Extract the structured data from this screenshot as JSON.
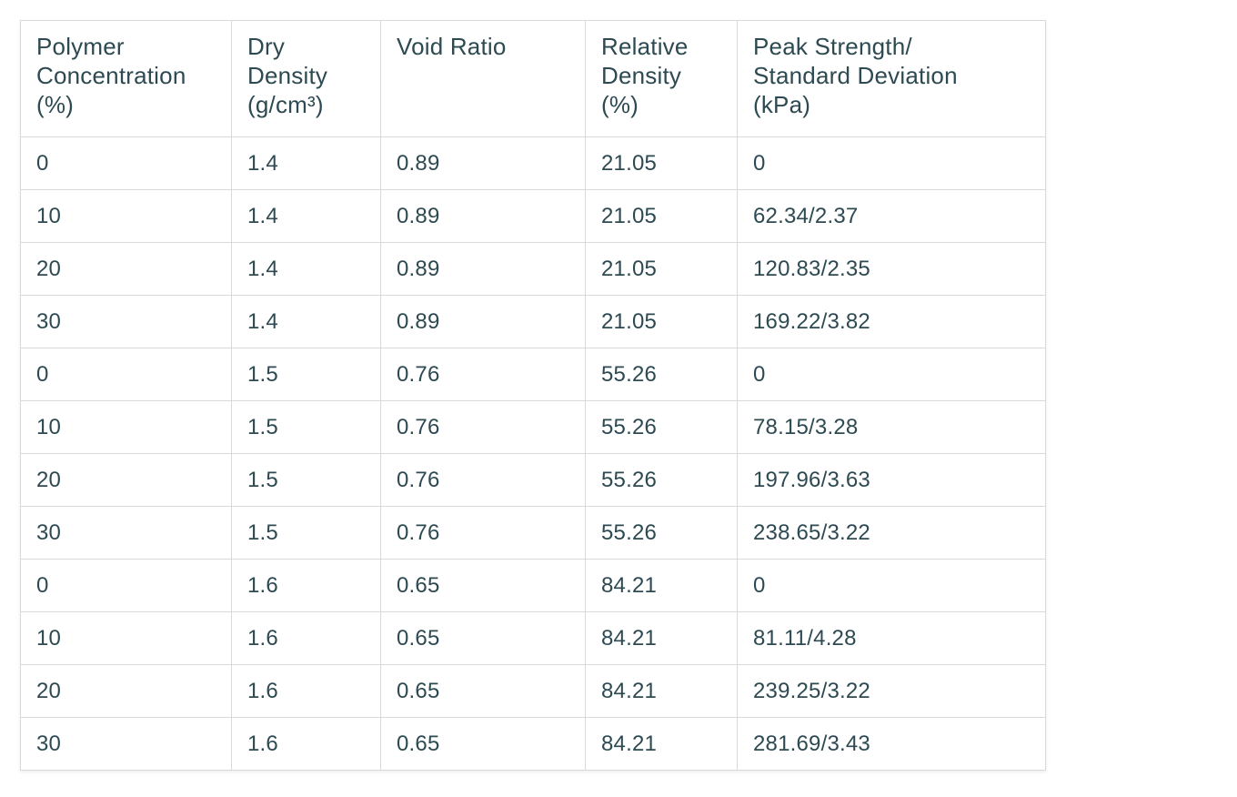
{
  "colors": {
    "text": "#2d4a52",
    "border": "#d7d9da",
    "background": "#ffffff"
  },
  "chart_data": {
    "type": "table",
    "columns": [
      "Polymer\nConcentration\n(%)",
      "Dry\nDensity\n(g/cm³)",
      "Void Ratio",
      "Relative\nDensity\n(%)",
      "Peak Strength/\nStandard Deviation\n(kPa)"
    ],
    "rows": [
      [
        "0",
        "1.4",
        "0.89",
        "21.05",
        "0"
      ],
      [
        "10",
        "1.4",
        "0.89",
        "21.05",
        "62.34/2.37"
      ],
      [
        "20",
        "1.4",
        "0.89",
        "21.05",
        "120.83/2.35"
      ],
      [
        "30",
        "1.4",
        "0.89",
        "21.05",
        "169.22/3.82"
      ],
      [
        "0",
        "1.5",
        "0.76",
        "55.26",
        "0"
      ],
      [
        "10",
        "1.5",
        "0.76",
        "55.26",
        "78.15/3.28"
      ],
      [
        "20",
        "1.5",
        "0.76",
        "55.26",
        "197.96/3.63"
      ],
      [
        "30",
        "1.5",
        "0.76",
        "55.26",
        "238.65/3.22"
      ],
      [
        "0",
        "1.6",
        "0.65",
        "84.21",
        "0"
      ],
      [
        "10",
        "1.6",
        "0.65",
        "84.21",
        "81.11/4.28"
      ],
      [
        "20",
        "1.6",
        "0.65",
        "84.21",
        "239.25/3.22"
      ],
      [
        "30",
        "1.6",
        "0.65",
        "84.21",
        "281.69/3.43"
      ]
    ]
  }
}
